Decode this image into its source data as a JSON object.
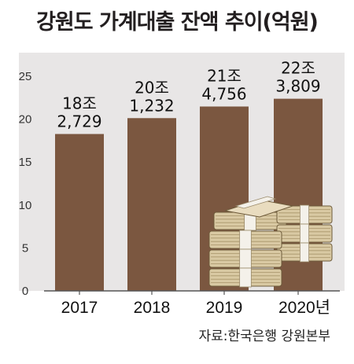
{
  "title": "강원도 가계대출 잔액 추이(억원)",
  "source": "자료:한국은행 강원본부",
  "colors": {
    "bar": "#7b5740",
    "panel": "#e8e6e6",
    "axis": "#555555"
  },
  "chart_data": {
    "type": "bar",
    "categories": [
      "2017",
      "2018",
      "2019",
      "2020년"
    ],
    "values": [
      182729,
      201232,
      214756,
      223809
    ],
    "value_labels": [
      [
        "18조",
        "2,729"
      ],
      [
        "20조",
        "1,232"
      ],
      [
        "21조",
        "4,756"
      ],
      [
        "22조",
        "3,809"
      ]
    ],
    "y_ticks": [
      "0",
      "5",
      "10",
      "15",
      "20",
      "25"
    ],
    "y_tick_values": [
      0,
      5,
      10,
      15,
      20,
      25
    ],
    "ylim": [
      0,
      25
    ],
    "grid": false,
    "decoration": "money-bundle-illustration"
  }
}
